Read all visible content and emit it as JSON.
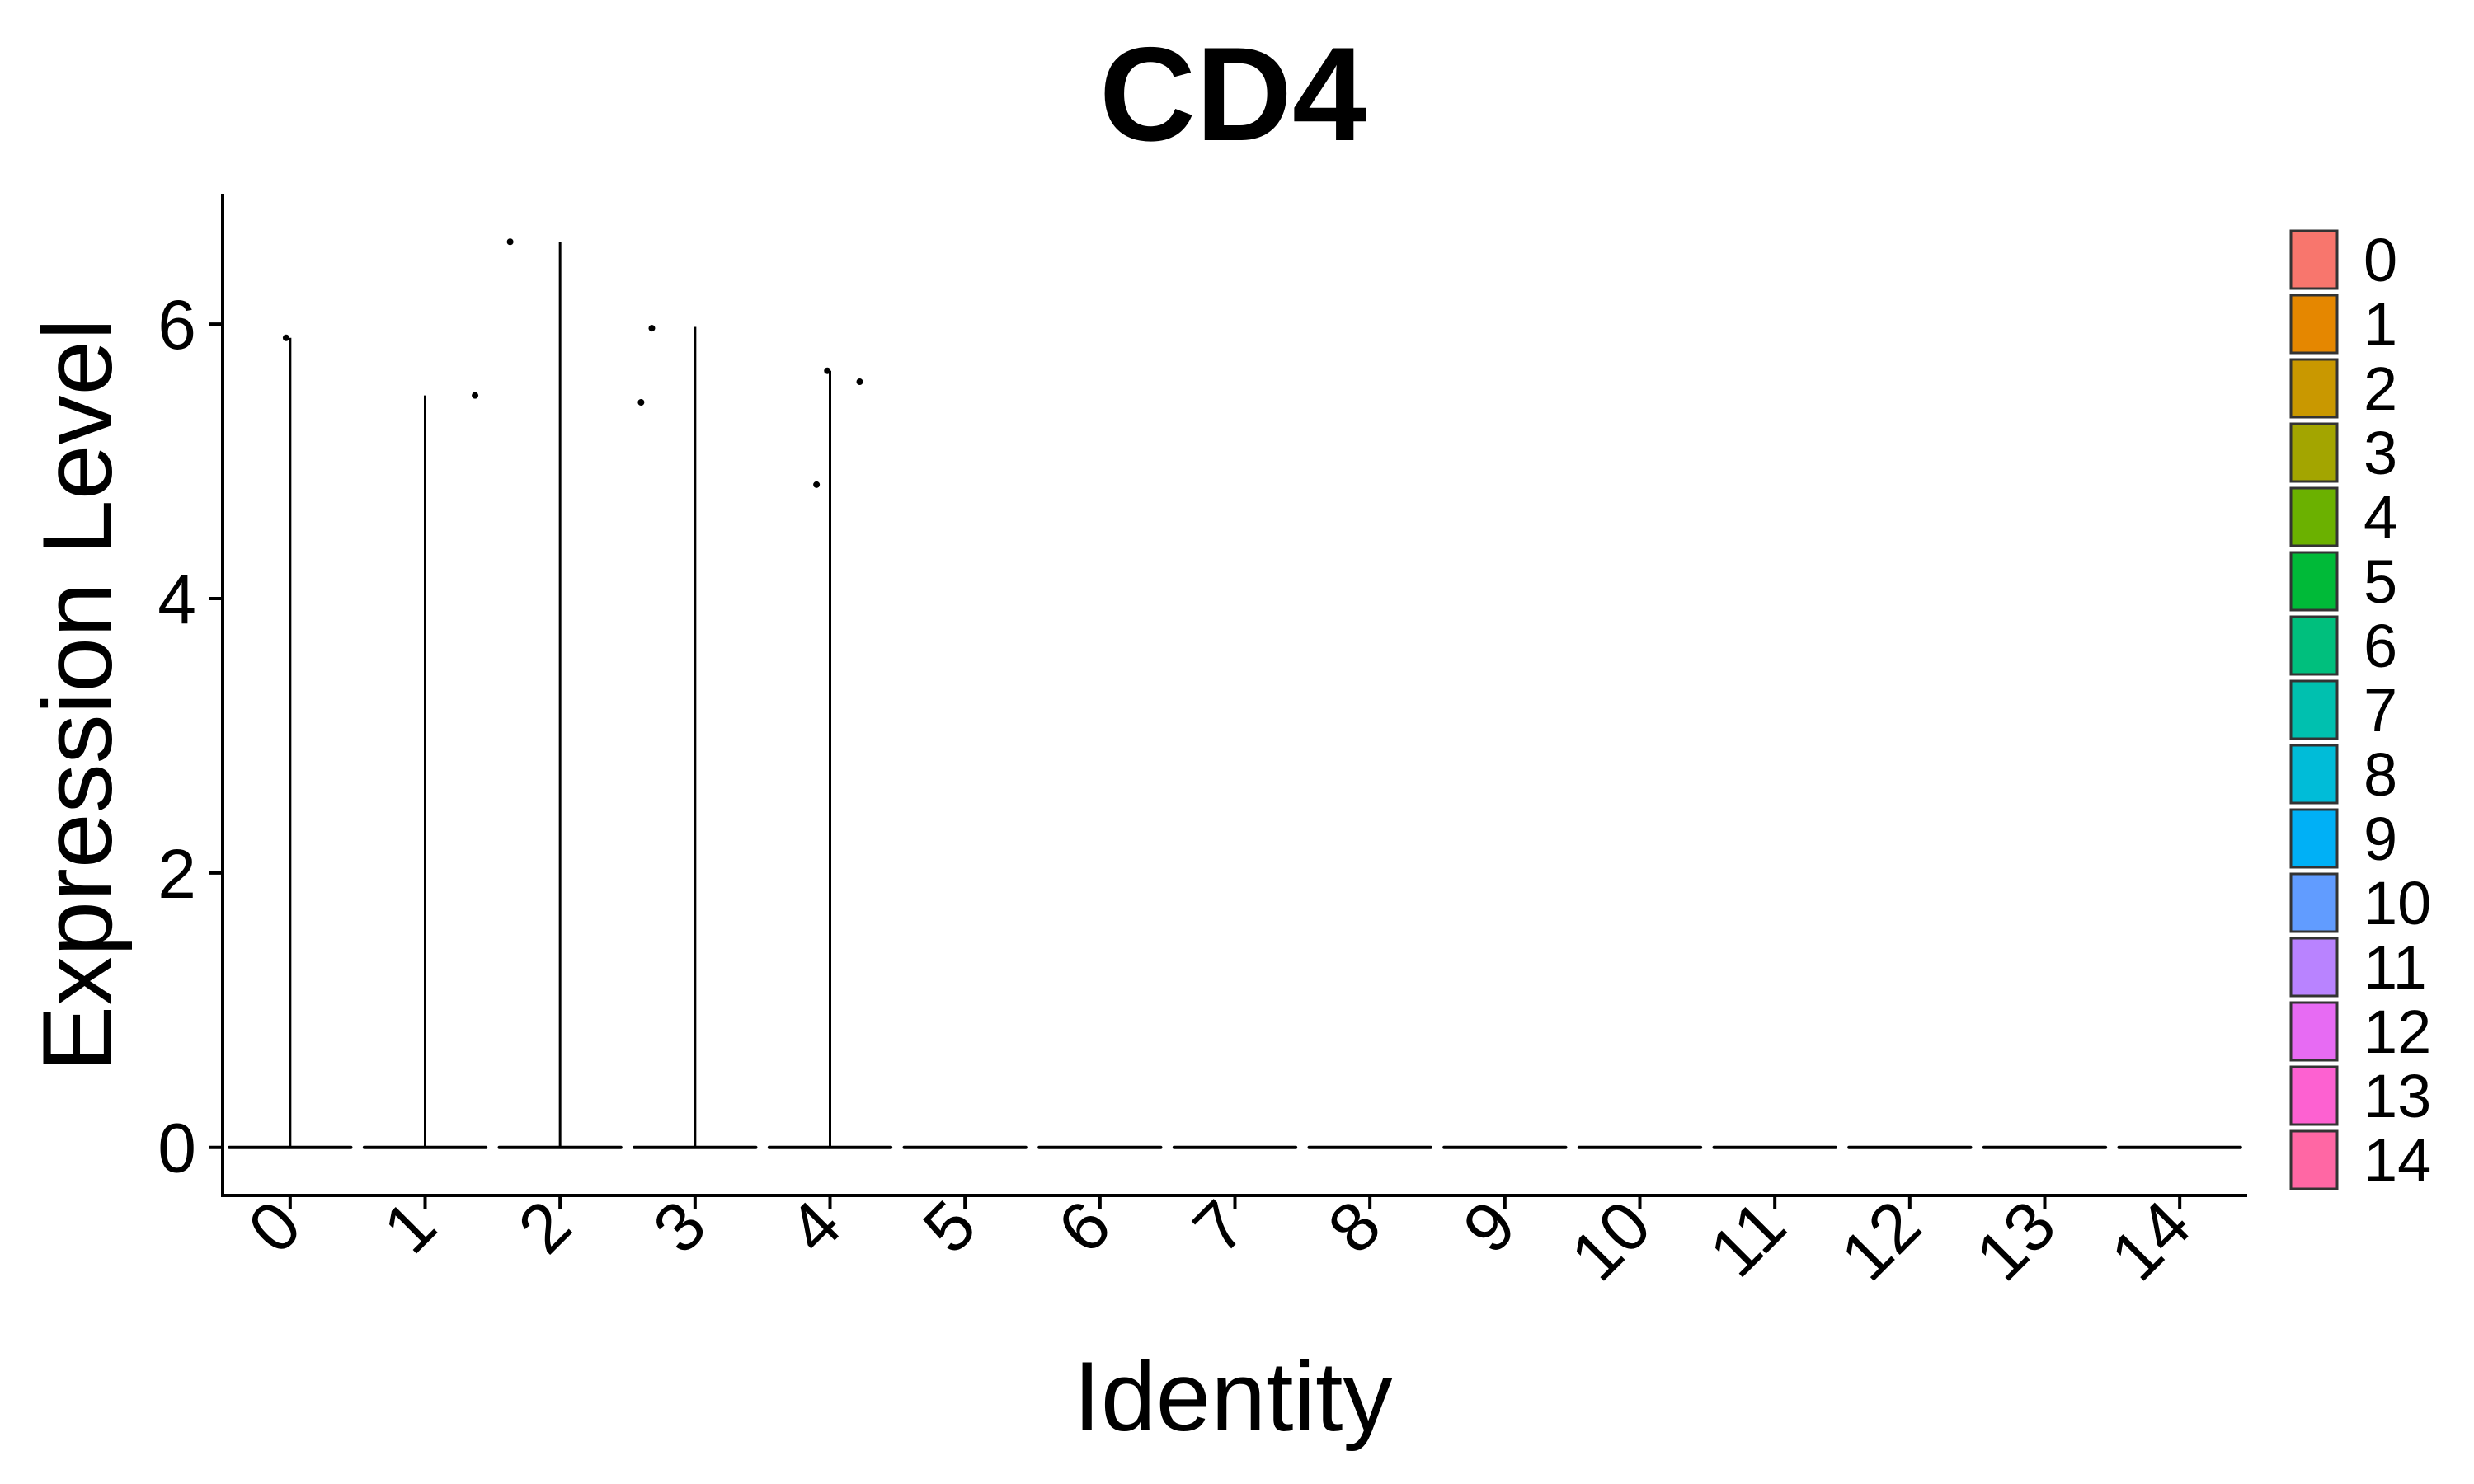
{
  "chart_data": {
    "type": "violin",
    "title": "CD4",
    "xlabel": "Identity",
    "ylabel": "Expression Level",
    "categories": [
      "0",
      "1",
      "2",
      "3",
      "4",
      "5",
      "6",
      "7",
      "8",
      "9",
      "10",
      "11",
      "12",
      "13",
      "14"
    ],
    "ylim": [
      -0.35,
      6.95
    ],
    "yticks": [
      0,
      2,
      4,
      6
    ],
    "grid": false,
    "legend_position": "right",
    "colors": [
      "#F8766D",
      "#E58700",
      "#C99800",
      "#A3A500",
      "#6BB100",
      "#00BA38",
      "#00BF7D",
      "#00C0AF",
      "#00BCD8",
      "#00B0F6",
      "#619CFF",
      "#B983FF",
      "#E76BF3",
      "#FD61D1",
      "#FF67A4"
    ],
    "violin_max": [
      5.9,
      5.48,
      6.6,
      5.98,
      5.66,
      0,
      0,
      0,
      0,
      0,
      0,
      0,
      0,
      0,
      0
    ],
    "points": [
      {
        "category": "0",
        "offset": -0.03,
        "value": 5.9
      },
      {
        "category": "1",
        "offset": 0.37,
        "value": 5.48
      },
      {
        "category": "2",
        "offset": -0.37,
        "value": 6.6
      },
      {
        "category": "3",
        "offset": -0.4,
        "value": 5.43
      },
      {
        "category": "3",
        "offset": -0.32,
        "value": 5.97
      },
      {
        "category": "4",
        "offset": -0.1,
        "value": 4.83
      },
      {
        "category": "4",
        "offset": -0.02,
        "value": 5.66
      },
      {
        "category": "4",
        "offset": 0.22,
        "value": 5.58
      }
    ]
  }
}
